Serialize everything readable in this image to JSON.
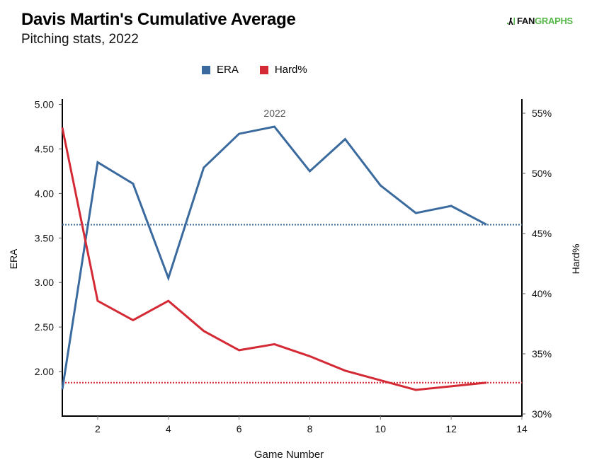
{
  "header": {
    "title": "Davis Martin's Cumulative Average",
    "subtitle": "Pitching stats, 2022",
    "logo_text_a": "FAN",
    "logo_text_b": "GRAPHS"
  },
  "colors": {
    "era": "#3a6a9e",
    "hard": "#d42a36",
    "logo_green": "#56b848"
  },
  "chart_data": {
    "type": "line",
    "title": "Davis Martin's Cumulative Average",
    "subtitle": "Pitching stats, 2022",
    "annotation": "2022",
    "xlabel": "Game Number",
    "ylabel": "ERA",
    "y2label": "Hard%",
    "xlim": [
      1,
      14
    ],
    "ylim": [
      1.5,
      5.06
    ],
    "y2lim": [
      30,
      56
    ],
    "x_ticks": [
      2,
      4,
      6,
      8,
      10,
      12,
      14
    ],
    "x_tick_labels": [
      "2",
      "4",
      "6",
      "8",
      "10",
      "12",
      "14"
    ],
    "y_ticks": [
      2.0,
      2.5,
      3.0,
      3.5,
      4.0,
      4.5,
      5.0
    ],
    "y_tick_labels": [
      "2.00",
      "2.50",
      "3.00",
      "3.50",
      "4.00",
      "4.50",
      "5.00"
    ],
    "y2_ticks": [
      30,
      35,
      40,
      45,
      50,
      55
    ],
    "y2_tick_labels": [
      "30%",
      "35%",
      "40%",
      "45%",
      "50%",
      "55%"
    ],
    "legend": [
      "ERA",
      "Hard%"
    ],
    "legend_position": "top-center",
    "grid": false,
    "x": [
      1,
      2,
      3,
      4,
      5,
      6,
      7,
      8,
      9,
      10,
      11,
      12,
      13
    ],
    "series": [
      {
        "name": "ERA",
        "axis": "left",
        "values": [
          1.8,
          4.35,
          4.11,
          3.05,
          4.29,
          4.67,
          4.75,
          4.25,
          4.61,
          4.09,
          3.78,
          3.86,
          3.65
        ],
        "average": 3.65
      },
      {
        "name": "Hard%",
        "axis": "right",
        "values": [
          53.8,
          39.4,
          37.8,
          39.4,
          36.9,
          35.3,
          35.8,
          34.8,
          33.6,
          32.8,
          32.0,
          32.3,
          32.6
        ],
        "average": 32.6
      }
    ]
  }
}
